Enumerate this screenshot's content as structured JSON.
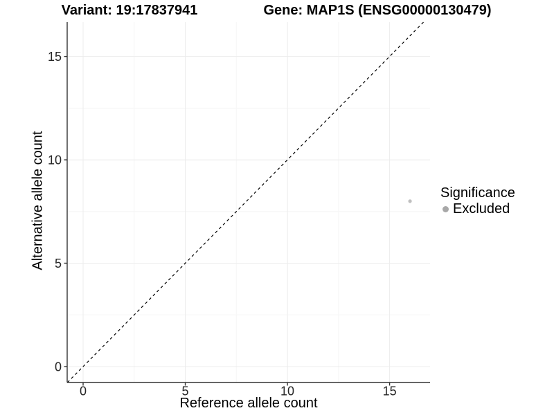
{
  "chart_data": {
    "type": "scatter",
    "titles": {
      "variant": "Variant: 19:17837941",
      "gene": "Gene: MAP1S (ENSG00000130479)"
    },
    "xlabel": "Reference allele count",
    "ylabel": "Alternative allele count",
    "xticks": [
      0,
      5,
      10,
      15
    ],
    "yticks": [
      0,
      5,
      10,
      15
    ],
    "xlim": [
      -0.78,
      16.98
    ],
    "ylim": [
      -0.77,
      16.66
    ],
    "grid": {
      "major_color": "#ececec",
      "minor_color": "#f6f6f6",
      "minor_on": true
    },
    "axis_color": "#333333",
    "tick_label_color": "#262626",
    "identity_line": {
      "slope": 1,
      "intercept": 0,
      "style": "dashed",
      "color": "#000000"
    },
    "series": [
      {
        "name": "Excluded",
        "color": "#c0c0c0",
        "point_radius": 2.6,
        "points": [
          {
            "x": 16,
            "y": 8
          }
        ]
      }
    ],
    "legend": {
      "title": "Significance",
      "position": "right",
      "items": [
        {
          "label": "Excluded",
          "color": "#a8a8a8"
        }
      ]
    }
  }
}
